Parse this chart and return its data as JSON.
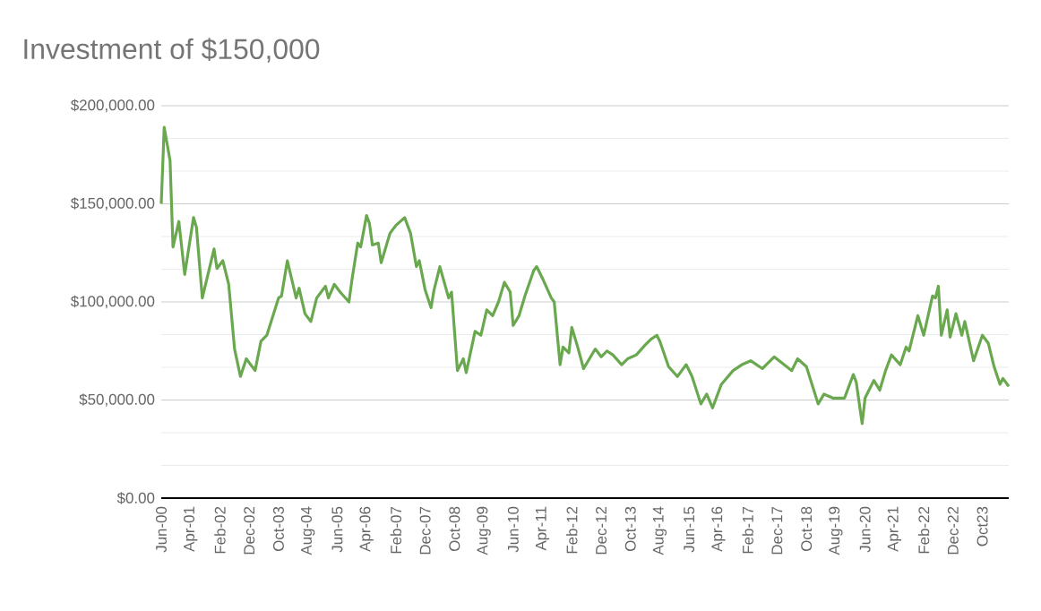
{
  "chart_data": {
    "type": "line",
    "title": "Investment of $150,000",
    "x": [
      "2000-06",
      "2000-07",
      "2000-09",
      "2000-10",
      "2000-12",
      "2001-02",
      "2001-05",
      "2001-06",
      "2001-08",
      "2001-12",
      "2002-01",
      "2002-03",
      "2002-05",
      "2002-07",
      "2002-09",
      "2002-11",
      "2003-02",
      "2003-04",
      "2003-06",
      "2003-10",
      "2003-11",
      "2004-01",
      "2004-04",
      "2004-05",
      "2004-07",
      "2004-09",
      "2004-11",
      "2005-02",
      "2005-03",
      "2005-05",
      "2005-07",
      "2005-10",
      "2005-11",
      "2006-01",
      "2006-02",
      "2006-04",
      "2006-05",
      "2006-06",
      "2006-08",
      "2006-09",
      "2006-12",
      "2007-02",
      "2007-05",
      "2007-07",
      "2007-09",
      "2007-10",
      "2007-12",
      "2008-02",
      "2008-03",
      "2008-05",
      "2008-08",
      "2008-09",
      "2008-11",
      "2009-01",
      "2009-02",
      "2009-05",
      "2009-07",
      "2009-09",
      "2009-11",
      "2010-01",
      "2010-03",
      "2010-05",
      "2010-06",
      "2010-08",
      "2010-10",
      "2011-01",
      "2011-02",
      "2011-04",
      "2011-07",
      "2011-08",
      "2011-10",
      "2011-11",
      "2012-01",
      "2012-02",
      "2012-04",
      "2012-06",
      "2012-08",
      "2012-10",
      "2012-12",
      "2013-02",
      "2013-04",
      "2013-07",
      "2013-09",
      "2013-12",
      "2014-03",
      "2014-05",
      "2014-07",
      "2014-08",
      "2014-11",
      "2015-02",
      "2015-05",
      "2015-07",
      "2015-10",
      "2015-12",
      "2016-02",
      "2016-05",
      "2016-09",
      "2016-12",
      "2017-03",
      "2017-07",
      "2017-11",
      "2018-05",
      "2018-07",
      "2018-10",
      "2019-02",
      "2019-04",
      "2019-07",
      "2019-11",
      "2020-02",
      "2020-03",
      "2020-05",
      "2020-06",
      "2020-09",
      "2020-11",
      "2021-01",
      "2021-03",
      "2021-06",
      "2021-08",
      "2021-09",
      "2021-12",
      "2022-02",
      "2022-05",
      "2022-06",
      "2022-07",
      "2022-08",
      "2022-10",
      "2022-11",
      "2023-01",
      "2023-03",
      "2023-04",
      "2023-07",
      "2023-10",
      "2023-12",
      "2024-02",
      "2024-04",
      "2024-05",
      "2024-07"
    ],
    "series": [
      {
        "color": "#6aa84f",
        "values": [
          150000,
          189000,
          172000,
          128000,
          141000,
          114000,
          143000,
          138000,
          102000,
          127000,
          117000,
          121000,
          109000,
          76000,
          62000,
          71000,
          65000,
          80000,
          83000,
          102000,
          103000,
          121000,
          102000,
          107000,
          94000,
          90000,
          102000,
          108000,
          102000,
          109000,
          105000,
          100000,
          111000,
          130000,
          128000,
          144000,
          140000,
          129000,
          130000,
          120000,
          135000,
          139000,
          143000,
          135000,
          118000,
          121000,
          106000,
          97000,
          106000,
          118000,
          102000,
          105000,
          65000,
          71000,
          64000,
          85000,
          83000,
          96000,
          93000,
          100000,
          110000,
          105000,
          88000,
          93000,
          103000,
          116000,
          118000,
          112000,
          102000,
          100000,
          68000,
          77000,
          74000,
          87000,
          77000,
          66000,
          71000,
          76000,
          72000,
          75000,
          73000,
          68000,
          71000,
          73000,
          78000,
          81000,
          83000,
          80000,
          67000,
          62000,
          68000,
          62000,
          48000,
          53000,
          46000,
          58000,
          65000,
          68000,
          70000,
          66000,
          72000,
          65000,
          71000,
          67000,
          48000,
          53000,
          51000,
          51000,
          63000,
          59000,
          38000,
          51000,
          60000,
          55000,
          65000,
          73000,
          68000,
          77000,
          75000,
          93000,
          83000,
          103000,
          102000,
          108000,
          83000,
          96000,
          82000,
          94000,
          83000,
          90000,
          70000,
          83000,
          79000,
          67000,
          58000,
          61000,
          57000
        ]
      }
    ],
    "xlim": [
      "2000-06",
      "2024-07"
    ],
    "xticks": [
      {
        "value": "2000-06",
        "label": "Jun-00"
      },
      {
        "value": "2001-04",
        "label": "Apr-01"
      },
      {
        "value": "2002-02",
        "label": "Feb-02"
      },
      {
        "value": "2002-12",
        "label": "Dec-02"
      },
      {
        "value": "2003-10",
        "label": "Oct-03"
      },
      {
        "value": "2004-08",
        "label": "Aug-04"
      },
      {
        "value": "2005-06",
        "label": "Jun-05"
      },
      {
        "value": "2006-04",
        "label": "Apr-06"
      },
      {
        "value": "2007-02",
        "label": "Feb-07"
      },
      {
        "value": "2007-12",
        "label": "Dec-07"
      },
      {
        "value": "2008-10",
        "label": "Oct-08"
      },
      {
        "value": "2009-08",
        "label": "Aug-09"
      },
      {
        "value": "2010-06",
        "label": "Jun-10"
      },
      {
        "value": "2011-04",
        "label": "Apr-11"
      },
      {
        "value": "2012-02",
        "label": "Feb-12"
      },
      {
        "value": "2012-12",
        "label": "Dec-12"
      },
      {
        "value": "2013-10",
        "label": "Oct-13"
      },
      {
        "value": "2014-08",
        "label": "Aug-14"
      },
      {
        "value": "2015-06",
        "label": "Jun-15"
      },
      {
        "value": "2016-04",
        "label": "Apr-16"
      },
      {
        "value": "2017-02",
        "label": "Feb-17"
      },
      {
        "value": "2017-12",
        "label": "Dec-17"
      },
      {
        "value": "2018-10",
        "label": "Oct-18"
      },
      {
        "value": "2019-08",
        "label": "Aug-19"
      },
      {
        "value": "2020-06",
        "label": "Jun-20"
      },
      {
        "value": "2021-04",
        "label": "Apr-21"
      },
      {
        "value": "2022-02",
        "label": "Feb-22"
      },
      {
        "value": "2022-12",
        "label": "Dec-22"
      },
      {
        "value": "2023-10",
        "label": "Oct23"
      }
    ],
    "ylim": [
      0,
      200000
    ],
    "yticks": [
      {
        "value": 0,
        "label": "$0.00"
      },
      {
        "value": 16667,
        "label": null
      },
      {
        "value": 33333,
        "label": null
      },
      {
        "value": 50000,
        "label": "$50,000.00"
      },
      {
        "value": 66667,
        "label": null
      },
      {
        "value": 83333,
        "label": null
      },
      {
        "value": 100000,
        "label": "$100,000.00"
      },
      {
        "value": 116667,
        "label": null
      },
      {
        "value": 133333,
        "label": null
      },
      {
        "value": 150000,
        "label": "$150,000.00"
      },
      {
        "value": 166667,
        "label": null
      },
      {
        "value": 183333,
        "label": null
      },
      {
        "value": 200000,
        "label": "$200,000.00"
      }
    ],
    "grid": "y",
    "marker": "none",
    "line_style": "solid"
  }
}
